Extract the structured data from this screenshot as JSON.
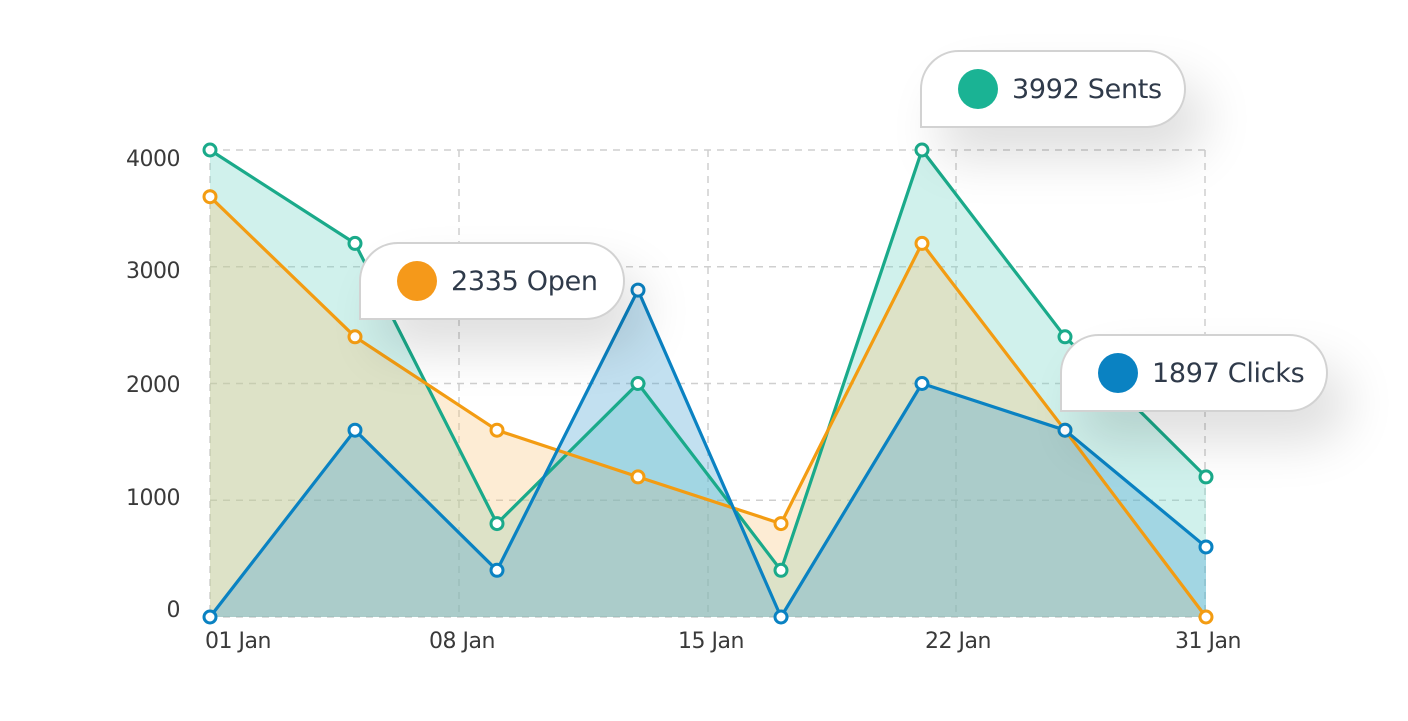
{
  "chart_data": {
    "type": "area",
    "title": "",
    "xlabel": "",
    "ylabel": "",
    "ylim": [
      0,
      4000
    ],
    "y_ticks": [
      "0",
      "1000",
      "2000",
      "3000",
      "4000"
    ],
    "x_tick_labels": [
      "01 Jan",
      "08 Jan",
      "15 Jan",
      "22 Jan",
      "31 Jan"
    ],
    "grid": true,
    "grid_style": "dashed",
    "x_points": 8,
    "series": [
      {
        "name": "Sents",
        "color": "#1aaa8a",
        "fill": "rgba(120,215,200,0.35)",
        "values": [
          4000,
          3200,
          800,
          2000,
          400,
          4000,
          2400,
          1200
        ]
      },
      {
        "name": "Open",
        "color": "#f39c12",
        "fill": "rgba(250,200,130,0.35)",
        "values": [
          3600,
          2400,
          1600,
          1200,
          800,
          3200,
          1600,
          0
        ]
      },
      {
        "name": "Clicks",
        "color": "#0a82c2",
        "fill": "rgba(100,170,215,0.40)",
        "values": [
          0,
          1600,
          400,
          2800,
          0,
          2000,
          1600,
          600
        ]
      }
    ],
    "annotations": [
      {
        "series": "Open",
        "value": 2335,
        "text": "2335 Open"
      },
      {
        "series": "Sents",
        "value": 3992,
        "text": "3992 Sents"
      },
      {
        "series": "Clicks",
        "value": 1897,
        "text": "1897 Clicks"
      }
    ]
  },
  "tooltips": {
    "open": {
      "label": "2335 Open",
      "color": "#f5991a"
    },
    "sents": {
      "label": "3992 Sents",
      "color": "#1ab394"
    },
    "clicks": {
      "label": "1897 Clicks",
      "color": "#0a82c2"
    }
  },
  "axis": {
    "y_labels": [
      "4000",
      "3000",
      "2000",
      "1000",
      "0"
    ],
    "x_labels": [
      "01 Jan",
      "08 Jan",
      "15 Jan",
      "22 Jan",
      "31 Jan"
    ]
  }
}
